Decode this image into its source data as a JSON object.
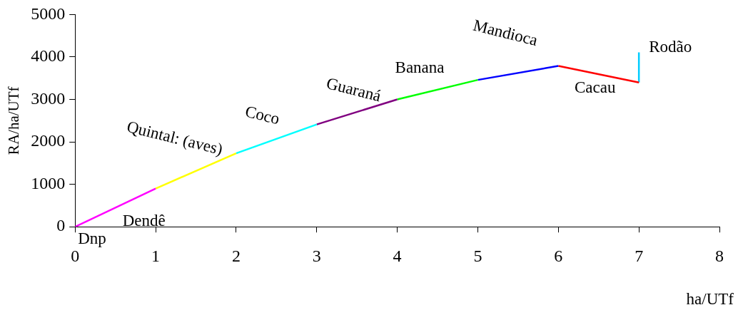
{
  "chart_data": {
    "type": "line",
    "xlabel": "ha/UTf",
    "ylabel": "RA/ha/UTf",
    "xlim": [
      0,
      8
    ],
    "xticks": [
      0,
      1,
      2,
      3,
      4,
      5,
      6,
      7,
      8
    ],
    "ylim": [
      0,
      5000
    ],
    "yticks": [
      0,
      1000,
      2000,
      3000,
      4000,
      5000
    ],
    "grid": false,
    "legend": false,
    "marker": "none",
    "line_style": "solid",
    "series": [
      {
        "name": "Dendê",
        "color": "#ff00ff",
        "x": [
          0,
          1
        ],
        "values": [
          0,
          900
        ]
      },
      {
        "name": "Quintal: (aves)",
        "color": "#ffff00",
        "x": [
          1,
          2
        ],
        "values": [
          900,
          1730
        ]
      },
      {
        "name": "Coco",
        "color": "#00ffff",
        "x": [
          2,
          3
        ],
        "values": [
          1730,
          2410
        ]
      },
      {
        "name": "Guaraná",
        "color": "#800080",
        "x": [
          3,
          4
        ],
        "values": [
          2410,
          3000
        ]
      },
      {
        "name": "Banana",
        "color": "#00ff00",
        "x": [
          4,
          5
        ],
        "values": [
          3000,
          3460
        ]
      },
      {
        "name": "Mandioca",
        "color": "#0000ff",
        "x": [
          5,
          6
        ],
        "values": [
          3460,
          3790
        ]
      },
      {
        "name": "Cacau",
        "color": "#ff0000",
        "x": [
          6,
          7
        ],
        "values": [
          3790,
          3400
        ]
      },
      {
        "name": "Rodão",
        "color": "#00ccff",
        "x": [
          7,
          7
        ],
        "values": [
          3400,
          4110
        ]
      }
    ],
    "annotations": [
      {
        "text": "Dnp",
        "x": 0,
        "y": 0
      }
    ]
  }
}
